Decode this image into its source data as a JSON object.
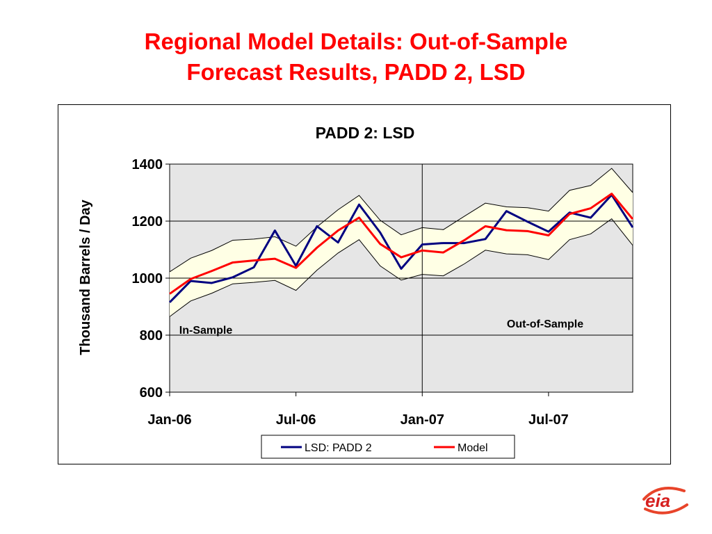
{
  "slide": {
    "title_line1": "Regional Model Details:  Out-of-Sample",
    "title_line2": "Forecast Results, PADD 2, LSD",
    "logo_text": "eia"
  },
  "colors": {
    "title": "#ff0000",
    "actual": "#000080",
    "model": "#ff0000",
    "band_fill": "#ffffe5",
    "plot_bg": "#e6e6e6"
  },
  "chart_data": {
    "type": "line",
    "title": "PADD 2:  LSD",
    "ylabel": "Thousand Barrels / Day",
    "xlabel": "",
    "ylim": [
      600,
      1400
    ],
    "yticks": [
      600,
      800,
      1000,
      1200,
      1400
    ],
    "grid": "horizontal",
    "legend_position": "bottom",
    "x_tick_labels": [
      {
        "label": "Jan-06",
        "index": 0
      },
      {
        "label": "Jul-06",
        "index": 6
      },
      {
        "label": "Jan-07",
        "index": 12
      },
      {
        "label": "Jul-07",
        "index": 18
      }
    ],
    "x": [
      "Jan-06",
      "Feb-06",
      "Mar-06",
      "Apr-06",
      "May-06",
      "Jun-06",
      "Jul-06",
      "Aug-06",
      "Sep-06",
      "Oct-06",
      "Nov-06",
      "Dec-06",
      "Jan-07",
      "Feb-07",
      "Mar-07",
      "Apr-07",
      "May-07",
      "Jun-07",
      "Jul-07",
      "Aug-07",
      "Sep-07",
      "Oct-07",
      "Nov-07"
    ],
    "series": [
      {
        "name": "LSD:  PADD 2",
        "values": [
          915,
          990,
          983,
          1003,
          1038,
          1167,
          1043,
          1182,
          1125,
          1258,
          1160,
          1033,
          1118,
          1123,
          1123,
          1137,
          1235,
          1198,
          1163,
          1230,
          1212,
          1292,
          1178
        ]
      },
      {
        "name": "Model",
        "values": [
          945,
          997,
          1025,
          1055,
          1062,
          1068,
          1036,
          1107,
          1167,
          1212,
          1120,
          1073,
          1097,
          1090,
          1133,
          1182,
          1168,
          1165,
          1150,
          1225,
          1245,
          1296,
          1207
        ]
      }
    ],
    "band": {
      "upper": [
        1022,
        1070,
        1097,
        1133,
        1137,
        1145,
        1112,
        1180,
        1240,
        1290,
        1203,
        1152,
        1177,
        1170,
        1217,
        1263,
        1250,
        1247,
        1235,
        1308,
        1325,
        1385,
        1300
      ],
      "lower": [
        865,
        920,
        947,
        980,
        985,
        992,
        957,
        1028,
        1088,
        1135,
        1043,
        993,
        1013,
        1008,
        1050,
        1098,
        1085,
        1082,
        1065,
        1135,
        1155,
        1208,
        1115
      ]
    },
    "divider_index": 12,
    "annotations": [
      {
        "text": "In-Sample"
      },
      {
        "text": "Out-of-Sample"
      }
    ]
  }
}
